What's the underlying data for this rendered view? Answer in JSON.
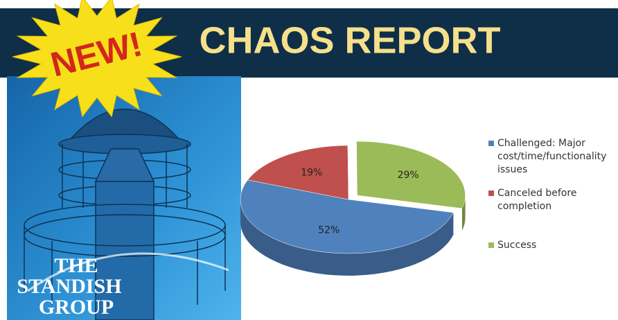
{
  "header": {
    "title": "CHAOS REPORT",
    "badge": "NEW!"
  },
  "logo": [
    "THE",
    "STANDISH",
    "GROUP"
  ],
  "chart_data": {
    "type": "pie",
    "categories": [
      "Challenged: Major cost/time/functionality issues",
      "Canceled before completion",
      "Success"
    ],
    "values": [
      52,
      19,
      29
    ],
    "value_labels": [
      "52%",
      "19%",
      "29%"
    ],
    "colors": [
      "#4f81bd",
      "#c0504d",
      "#9bbb59"
    ]
  }
}
